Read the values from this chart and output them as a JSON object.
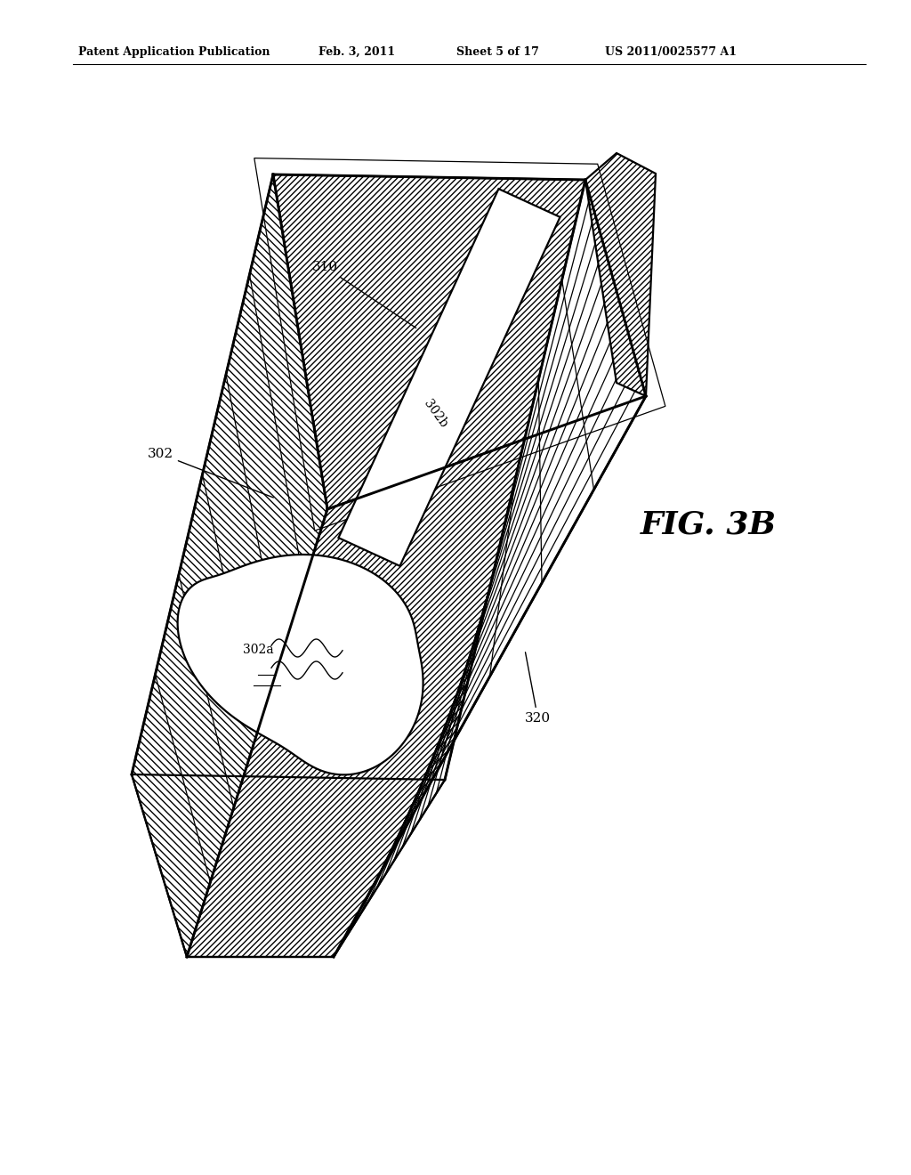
{
  "title_left": "Patent Application Publication",
  "title_date": "Feb. 3, 2011",
  "title_sheet": "Sheet 5 of 17",
  "title_us": "US 2011/0025577 A1",
  "fig_label": "FIG. 3B",
  "bg_color": "#ffffff",
  "line_color": "#000000",
  "lw_main": 1.6,
  "lw_thin": 0.9,
  "label_fontsize": 11
}
